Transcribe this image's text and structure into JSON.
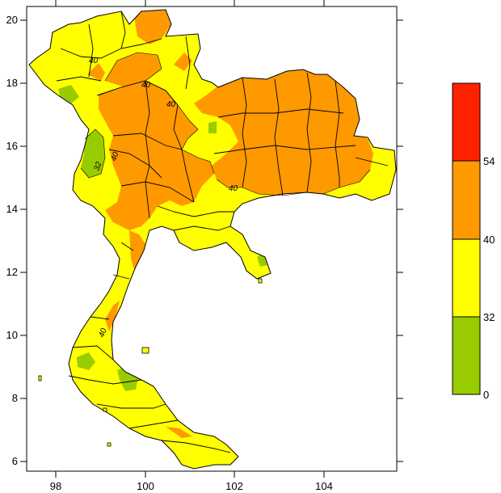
{
  "map": {
    "x_ticks": [
      "98",
      "100",
      "102",
      "104"
    ],
    "y_ticks": [
      "6",
      "8",
      "10",
      "12",
      "14",
      "16",
      "18",
      "20"
    ],
    "x_range": [
      97.4,
      105.7
    ],
    "y_range": [
      5.6,
      20.3
    ],
    "contour_labels": [
      "40",
      "40",
      "40",
      "40",
      "32",
      "40",
      "40"
    ]
  },
  "legend": {
    "bins": [
      {
        "label": "0",
        "color": "#99cc00"
      },
      {
        "label": "32",
        "color": "#ffff00"
      },
      {
        "label": "40",
        "color": "#ff9900"
      },
      {
        "label": "54",
        "color": "#ff2200"
      }
    ],
    "colors": {
      "green": "#99cc00",
      "yellow": "#ffff00",
      "orange": "#ff9900",
      "red": "#ff2200"
    }
  }
}
